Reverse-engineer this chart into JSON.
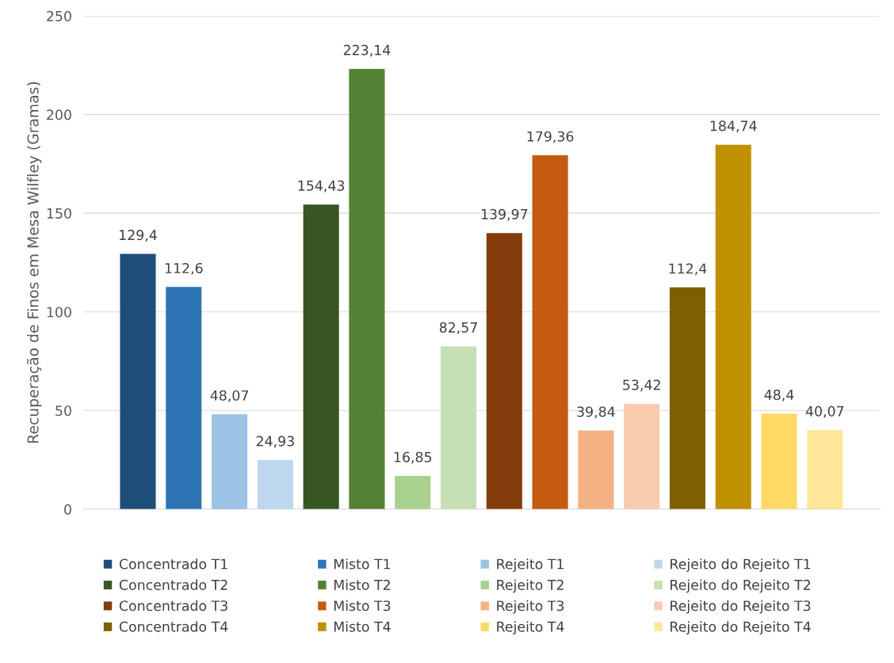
{
  "chart_data": {
    "type": "bar",
    "ylabel": "Recuperação de Finos em Mesa Wilfley (Gramas)",
    "categories": [
      null
    ],
    "ylim": [
      0,
      250
    ],
    "yticks": [
      0,
      50,
      100,
      150,
      200,
      250
    ],
    "grid": "y",
    "legend": "bottom",
    "data_labels": true,
    "series": [
      {
        "name": "Concentrado T1",
        "color": "#1f4e79",
        "values": [
          129.4
        ],
        "value_labels": [
          "129,4"
        ]
      },
      {
        "name": "Misto T1",
        "color": "#2e75b6",
        "values": [
          112.6
        ],
        "value_labels": [
          "112,6"
        ]
      },
      {
        "name": "Rejeito T1",
        "color": "#9dc3e6",
        "values": [
          48.07
        ],
        "value_labels": [
          "48,07"
        ]
      },
      {
        "name": "Rejeito do Rejeito T1",
        "color": "#bdd7ee",
        "values": [
          24.93
        ],
        "value_labels": [
          "24,93"
        ]
      },
      {
        "name": "Concentrado T2",
        "color": "#375623",
        "values": [
          154.43
        ],
        "value_labels": [
          "154,43"
        ]
      },
      {
        "name": "Misto T2",
        "color": "#548235",
        "values": [
          223.14
        ],
        "value_labels": [
          "223,14"
        ]
      },
      {
        "name": "Rejeito T2",
        "color": "#a9d18e",
        "values": [
          16.85
        ],
        "value_labels": [
          "16,85"
        ]
      },
      {
        "name": "Rejeito do Rejeito T2",
        "color": "#c5e0b4",
        "values": [
          82.57
        ],
        "value_labels": [
          "82,57"
        ]
      },
      {
        "name": "Concentrado T3",
        "color": "#843c0c",
        "values": [
          139.97
        ],
        "value_labels": [
          "139,97"
        ]
      },
      {
        "name": "Misto T3",
        "color": "#c55a11",
        "values": [
          179.36
        ],
        "value_labels": [
          "179,36"
        ]
      },
      {
        "name": "Rejeito T3",
        "color": "#f4b183",
        "values": [
          39.84
        ],
        "value_labels": [
          "39,84"
        ]
      },
      {
        "name": "Rejeito do Rejeito T3",
        "color": "#f8cbad",
        "values": [
          53.42
        ],
        "value_labels": [
          "53,42"
        ]
      },
      {
        "name": "Concentrado T4",
        "color": "#7f6000",
        "values": [
          112.4
        ],
        "value_labels": [
          "112,4"
        ]
      },
      {
        "name": "Misto T4",
        "color": "#bf9000",
        "values": [
          184.74
        ],
        "value_labels": [
          "184,74"
        ]
      },
      {
        "name": "Rejeito T4",
        "color": "#ffd966",
        "values": [
          48.4
        ],
        "value_labels": [
          "48,4"
        ]
      },
      {
        "name": "Rejeito do Rejeito T4",
        "color": "#ffe699",
        "values": [
          40.07
        ],
        "value_labels": [
          "40,07"
        ]
      }
    ]
  }
}
